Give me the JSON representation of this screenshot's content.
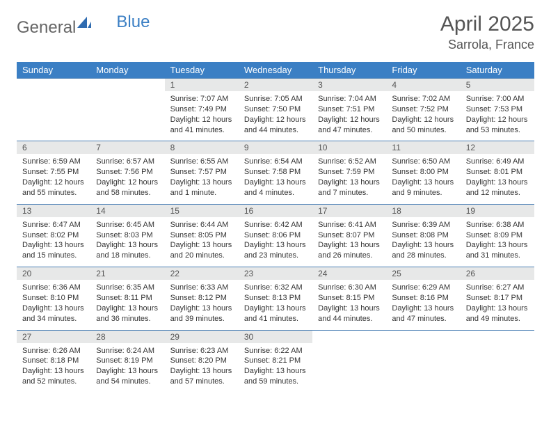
{
  "brand": {
    "part1": "General",
    "part2": "Blue"
  },
  "title": "April 2025",
  "location": "Sarrola, France",
  "columns": [
    "Sunday",
    "Monday",
    "Tuesday",
    "Wednesday",
    "Thursday",
    "Friday",
    "Saturday"
  ],
  "colors": {
    "header_bg": "#3b7fc4",
    "header_text": "#ffffff",
    "daynum_bg": "#e7e8e8",
    "row_border": "#4a7fb5",
    "text": "#333333",
    "title_text": "#555555"
  },
  "weeks": [
    [
      null,
      null,
      {
        "n": "1",
        "sunrise": "Sunrise: 7:07 AM",
        "sunset": "Sunset: 7:49 PM",
        "daylight": "Daylight: 12 hours and 41 minutes."
      },
      {
        "n": "2",
        "sunrise": "Sunrise: 7:05 AM",
        "sunset": "Sunset: 7:50 PM",
        "daylight": "Daylight: 12 hours and 44 minutes."
      },
      {
        "n": "3",
        "sunrise": "Sunrise: 7:04 AM",
        "sunset": "Sunset: 7:51 PM",
        "daylight": "Daylight: 12 hours and 47 minutes."
      },
      {
        "n": "4",
        "sunrise": "Sunrise: 7:02 AM",
        "sunset": "Sunset: 7:52 PM",
        "daylight": "Daylight: 12 hours and 50 minutes."
      },
      {
        "n": "5",
        "sunrise": "Sunrise: 7:00 AM",
        "sunset": "Sunset: 7:53 PM",
        "daylight": "Daylight: 12 hours and 53 minutes."
      }
    ],
    [
      {
        "n": "6",
        "sunrise": "Sunrise: 6:59 AM",
        "sunset": "Sunset: 7:55 PM",
        "daylight": "Daylight: 12 hours and 55 minutes."
      },
      {
        "n": "7",
        "sunrise": "Sunrise: 6:57 AM",
        "sunset": "Sunset: 7:56 PM",
        "daylight": "Daylight: 12 hours and 58 minutes."
      },
      {
        "n": "8",
        "sunrise": "Sunrise: 6:55 AM",
        "sunset": "Sunset: 7:57 PM",
        "daylight": "Daylight: 13 hours and 1 minute."
      },
      {
        "n": "9",
        "sunrise": "Sunrise: 6:54 AM",
        "sunset": "Sunset: 7:58 PM",
        "daylight": "Daylight: 13 hours and 4 minutes."
      },
      {
        "n": "10",
        "sunrise": "Sunrise: 6:52 AM",
        "sunset": "Sunset: 7:59 PM",
        "daylight": "Daylight: 13 hours and 7 minutes."
      },
      {
        "n": "11",
        "sunrise": "Sunrise: 6:50 AM",
        "sunset": "Sunset: 8:00 PM",
        "daylight": "Daylight: 13 hours and 9 minutes."
      },
      {
        "n": "12",
        "sunrise": "Sunrise: 6:49 AM",
        "sunset": "Sunset: 8:01 PM",
        "daylight": "Daylight: 13 hours and 12 minutes."
      }
    ],
    [
      {
        "n": "13",
        "sunrise": "Sunrise: 6:47 AM",
        "sunset": "Sunset: 8:02 PM",
        "daylight": "Daylight: 13 hours and 15 minutes."
      },
      {
        "n": "14",
        "sunrise": "Sunrise: 6:45 AM",
        "sunset": "Sunset: 8:03 PM",
        "daylight": "Daylight: 13 hours and 18 minutes."
      },
      {
        "n": "15",
        "sunrise": "Sunrise: 6:44 AM",
        "sunset": "Sunset: 8:05 PM",
        "daylight": "Daylight: 13 hours and 20 minutes."
      },
      {
        "n": "16",
        "sunrise": "Sunrise: 6:42 AM",
        "sunset": "Sunset: 8:06 PM",
        "daylight": "Daylight: 13 hours and 23 minutes."
      },
      {
        "n": "17",
        "sunrise": "Sunrise: 6:41 AM",
        "sunset": "Sunset: 8:07 PM",
        "daylight": "Daylight: 13 hours and 26 minutes."
      },
      {
        "n": "18",
        "sunrise": "Sunrise: 6:39 AM",
        "sunset": "Sunset: 8:08 PM",
        "daylight": "Daylight: 13 hours and 28 minutes."
      },
      {
        "n": "19",
        "sunrise": "Sunrise: 6:38 AM",
        "sunset": "Sunset: 8:09 PM",
        "daylight": "Daylight: 13 hours and 31 minutes."
      }
    ],
    [
      {
        "n": "20",
        "sunrise": "Sunrise: 6:36 AM",
        "sunset": "Sunset: 8:10 PM",
        "daylight": "Daylight: 13 hours and 34 minutes."
      },
      {
        "n": "21",
        "sunrise": "Sunrise: 6:35 AM",
        "sunset": "Sunset: 8:11 PM",
        "daylight": "Daylight: 13 hours and 36 minutes."
      },
      {
        "n": "22",
        "sunrise": "Sunrise: 6:33 AM",
        "sunset": "Sunset: 8:12 PM",
        "daylight": "Daylight: 13 hours and 39 minutes."
      },
      {
        "n": "23",
        "sunrise": "Sunrise: 6:32 AM",
        "sunset": "Sunset: 8:13 PM",
        "daylight": "Daylight: 13 hours and 41 minutes."
      },
      {
        "n": "24",
        "sunrise": "Sunrise: 6:30 AM",
        "sunset": "Sunset: 8:15 PM",
        "daylight": "Daylight: 13 hours and 44 minutes."
      },
      {
        "n": "25",
        "sunrise": "Sunrise: 6:29 AM",
        "sunset": "Sunset: 8:16 PM",
        "daylight": "Daylight: 13 hours and 47 minutes."
      },
      {
        "n": "26",
        "sunrise": "Sunrise: 6:27 AM",
        "sunset": "Sunset: 8:17 PM",
        "daylight": "Daylight: 13 hours and 49 minutes."
      }
    ],
    [
      {
        "n": "27",
        "sunrise": "Sunrise: 6:26 AM",
        "sunset": "Sunset: 8:18 PM",
        "daylight": "Daylight: 13 hours and 52 minutes."
      },
      {
        "n": "28",
        "sunrise": "Sunrise: 6:24 AM",
        "sunset": "Sunset: 8:19 PM",
        "daylight": "Daylight: 13 hours and 54 minutes."
      },
      {
        "n": "29",
        "sunrise": "Sunrise: 6:23 AM",
        "sunset": "Sunset: 8:20 PM",
        "daylight": "Daylight: 13 hours and 57 minutes."
      },
      {
        "n": "30",
        "sunrise": "Sunrise: 6:22 AM",
        "sunset": "Sunset: 8:21 PM",
        "daylight": "Daylight: 13 hours and 59 minutes."
      },
      null,
      null,
      null
    ]
  ]
}
